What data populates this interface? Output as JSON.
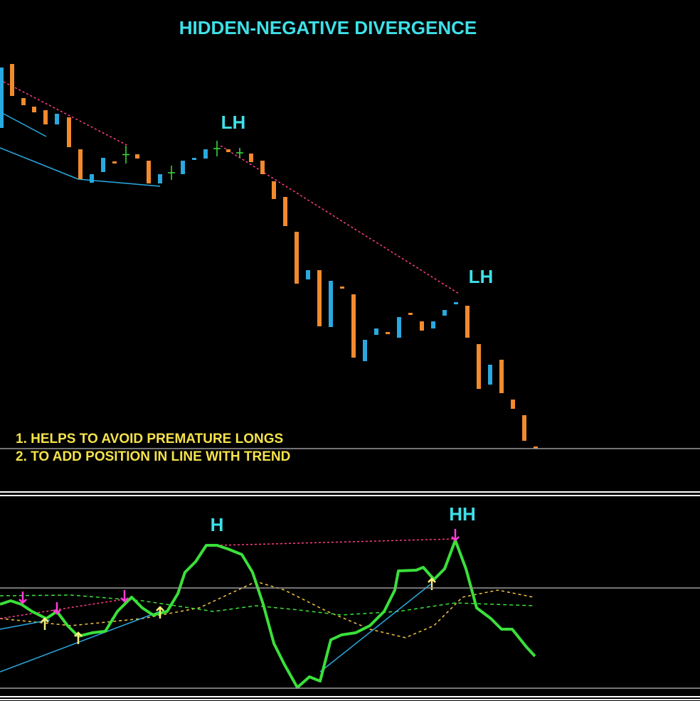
{
  "title": "HIDDEN-NEGATIVE DIVERGENCE",
  "price_labels": [
    "LH",
    "LH"
  ],
  "notes": [
    "1. HELPS TO AVOID PREMATURE LONGS",
    "2. TO ADD POSITION IN LINE WITH TREND"
  ],
  "indicator_labels": [
    "H",
    "HH"
  ]
}
